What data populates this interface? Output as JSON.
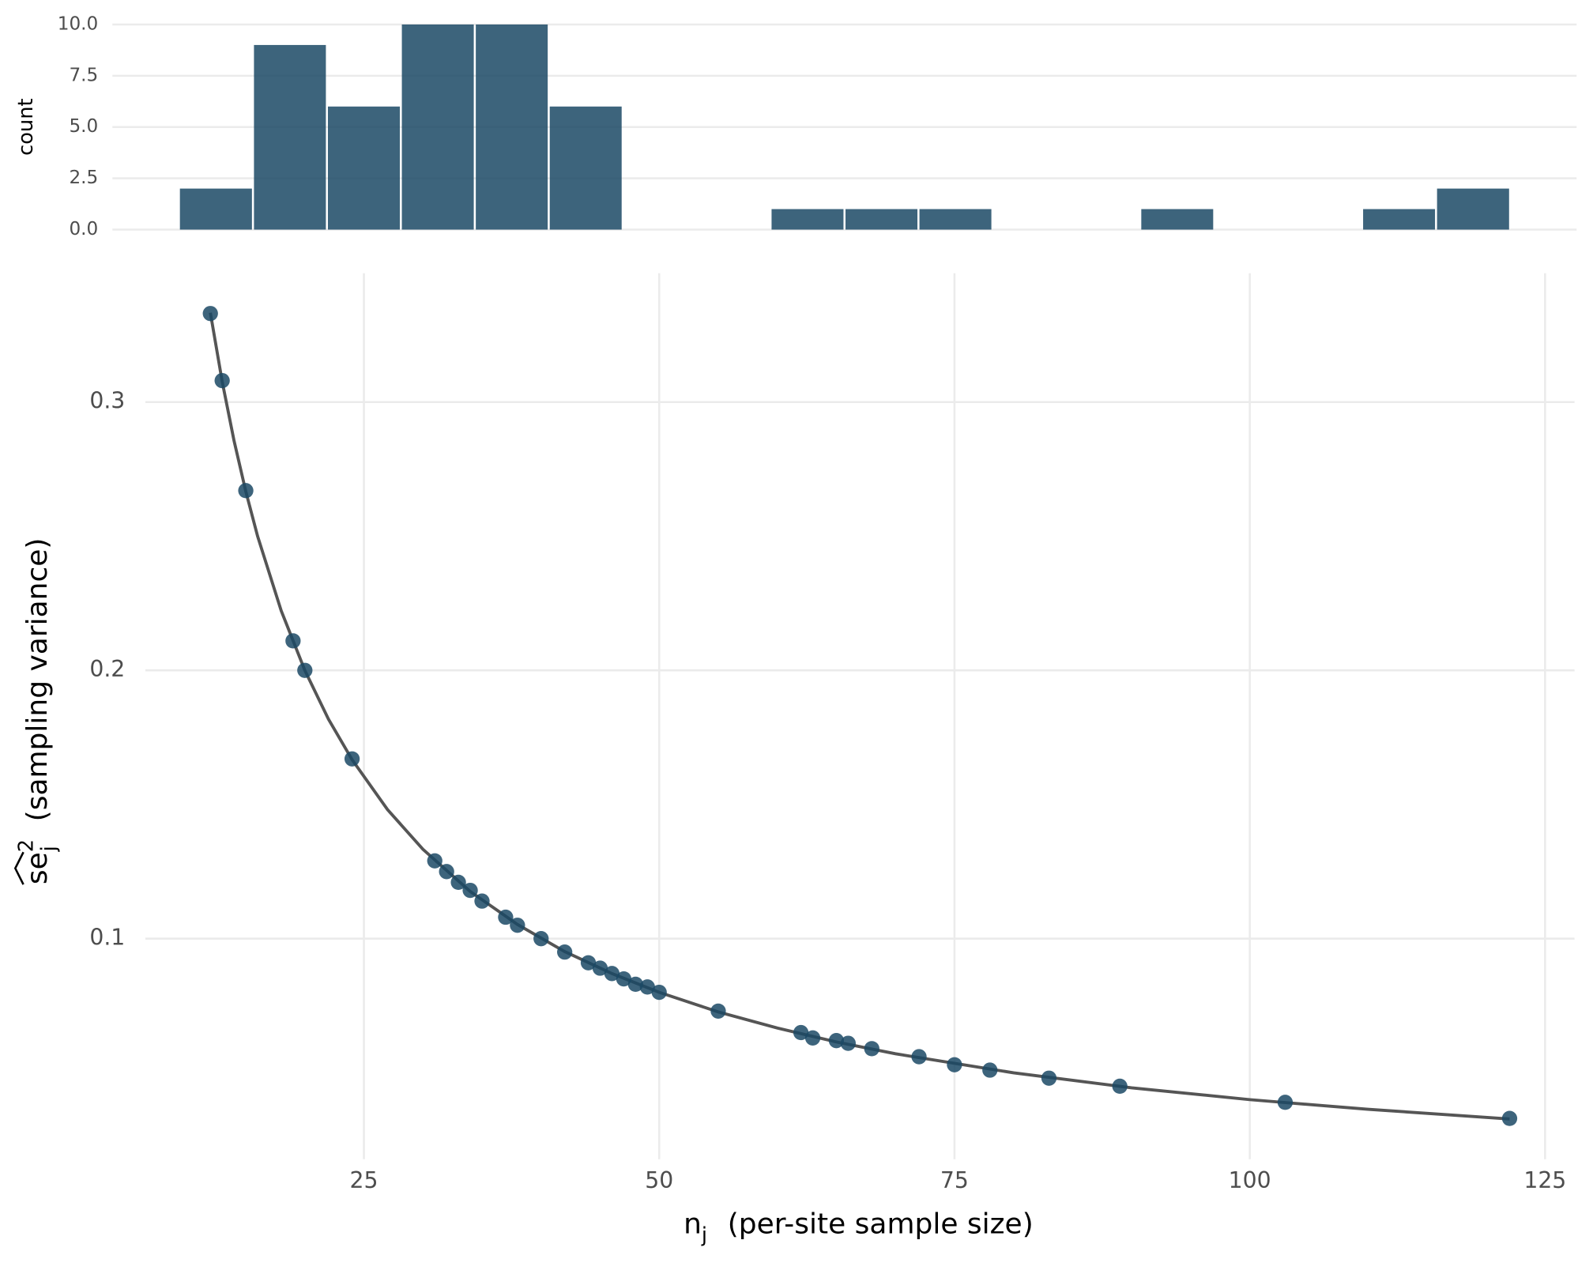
{
  "chart_data": [
    {
      "type": "histogram",
      "ylabel": "count",
      "bins": [
        8.76,
        15.24,
        21.71,
        28.18,
        34.65,
        41.12,
        47.59,
        54.06,
        60.53,
        67.0,
        73.47,
        79.94,
        86.41,
        92.88,
        99.35,
        105.82,
        112.29,
        118.76,
        125.24
      ],
      "values": [
        2,
        9,
        6,
        10,
        10,
        6,
        0,
        0,
        1,
        1,
        1,
        0,
        0,
        1,
        0,
        0,
        1,
        2
      ],
      "color": "#1b4965",
      "xlim": [
        2.94,
        131.06
      ],
      "ylim": [
        0,
        10.5
      ],
      "yticks": [
        {
          "value": 0,
          "label": "0.0"
        },
        2.5,
        {
          "value": 5,
          "label": "5.0"
        },
        7.5,
        {
          "value": 10,
          "label": "10.0"
        }
      ],
      "grid": true
    },
    {
      "type": "scatter",
      "xlabel": {
        "symbol": "n",
        "subscript": "j",
        "text": "(per-site sample size)"
      },
      "ylabel": {
        "symbol": "se",
        "superscript": "2",
        "subscript": "j",
        "text": "(sampling variance)"
      },
      "x": [
        12,
        13,
        15,
        19,
        20,
        24,
        31,
        32,
        33,
        34,
        35,
        37,
        38,
        40,
        42,
        44,
        45,
        46,
        47,
        48,
        49,
        50,
        55,
        62,
        63,
        65,
        66,
        68,
        72,
        75,
        78,
        83,
        89,
        103,
        122
      ],
      "values": [
        0.333,
        0.308,
        0.267,
        0.211,
        0.2,
        0.167,
        0.129,
        0.125,
        0.121,
        0.118,
        0.114,
        0.108,
        0.105,
        0.1,
        0.095,
        0.091,
        0.089,
        0.087,
        0.085,
        0.083,
        0.082,
        0.08,
        0.073,
        0.065,
        0.063,
        0.062,
        0.061,
        0.059,
        0.056,
        0.053,
        0.051,
        0.048,
        0.045,
        0.039,
        0.033
      ],
      "color": "#1b4965",
      "curve": {
        "x": [
          12,
          13,
          14,
          15,
          16,
          18,
          20,
          22,
          24,
          27,
          30,
          34,
          38,
          42,
          46,
          50,
          55,
          60,
          65,
          70,
          80,
          90,
          100,
          110,
          122
        ],
        "values": [
          0.3333,
          0.3077,
          0.2857,
          0.2667,
          0.25,
          0.2222,
          0.2,
          0.1818,
          0.1667,
          0.1481,
          0.1333,
          0.1176,
          0.1053,
          0.0952,
          0.087,
          0.08,
          0.0727,
          0.0667,
          0.0615,
          0.0571,
          0.05,
          0.0444,
          0.04,
          0.0364,
          0.0328
        ],
        "color": "#555555"
      },
      "xlim": [
        6.5,
        127.5
      ],
      "ylim": [
        0.0178,
        0.348
      ],
      "xticks": [
        25,
        50,
        75,
        100,
        125
      ],
      "yticks": [
        0.1,
        0.2,
        0.3
      ],
      "grid": true
    }
  ]
}
